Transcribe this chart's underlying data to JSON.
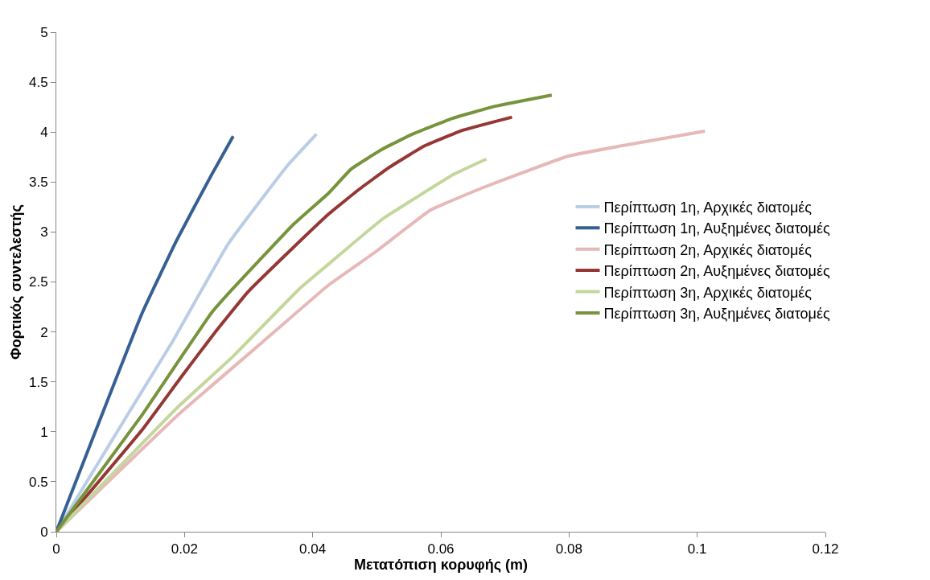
{
  "chart_data": {
    "type": "line",
    "xlabel": "Μετατόπιση κορυφής (m)",
    "ylabel": "Φορτικός συντελεστής",
    "xlim": [
      0,
      0.12
    ],
    "xticks": [
      0,
      0.02,
      0.04,
      0.06,
      0.08,
      0.1,
      0.12
    ],
    "ylim": [
      0,
      5
    ],
    "yticks": [
      0,
      0.5,
      1,
      1.5,
      2,
      2.5,
      3,
      3.5,
      4,
      4.5,
      5
    ],
    "grid": false,
    "legend": "right",
    "marker": "none",
    "line_style": "solid",
    "series": [
      {
        "name": "Περίπτωση 1η, Αρχικές διατομές",
        "color": "#b9cde5",
        "x": [
          0,
          0.0111,
          0.0181,
          0.0268,
          0.036,
          0.0406
        ],
        "values": [
          0,
          1.17,
          1.9,
          2.88,
          3.66,
          3.98
        ]
      },
      {
        "name": "Περίπτωση 1η, Αυξημένες διατομές",
        "color": "#376092",
        "x": [
          0,
          0.0134,
          0.0188,
          0.0242,
          0.0276
        ],
        "values": [
          0,
          2.19,
          2.92,
          3.57,
          3.96
        ]
      },
      {
        "name": "Περίπτωση 2η, Αρχικές διατομές",
        "color": "#e6b9b8",
        "x": [
          0,
          0.019,
          0.0322,
          0.0425,
          0.05,
          0.0584,
          0.0668,
          0.0799,
          0.088,
          0.1012
        ],
        "values": [
          0,
          1.17,
          1.9,
          2.47,
          2.81,
          3.22,
          3.45,
          3.76,
          3.86,
          4.01
        ]
      },
      {
        "name": "Περίπτωση 2η, Αυξημένες διατομές",
        "color": "#953735",
        "x": [
          0,
          0.0134,
          0.0195,
          0.0247,
          0.0299,
          0.0369,
          0.0425,
          0.0471,
          0.0518,
          0.0574,
          0.0635,
          0.0711
        ],
        "values": [
          0,
          1.02,
          1.55,
          1.99,
          2.4,
          2.84,
          3.18,
          3.42,
          3.64,
          3.86,
          4.02,
          4.15
        ]
      },
      {
        "name": "Περίπτωση 3η, Αρχικές διατομές",
        "color": "#c3d69b",
        "x": [
          0,
          0.019,
          0.0275,
          0.0379,
          0.0425,
          0.0509,
          0.0621,
          0.0671
        ],
        "values": [
          0,
          1.25,
          1.75,
          2.43,
          2.68,
          3.13,
          3.58,
          3.73
        ]
      },
      {
        "name": "Περίπτωση 3η, Αυξημένες διατομές",
        "color": "#77933c",
        "x": [
          0,
          0.0134,
          0.0195,
          0.0242,
          0.0275,
          0.0369,
          0.0425,
          0.046,
          0.0509,
          0.0556,
          0.0619,
          0.0686,
          0.0773
        ],
        "values": [
          0,
          1.17,
          1.75,
          2.19,
          2.43,
          3.07,
          3.39,
          3.63,
          3.83,
          3.98,
          4.14,
          4.26,
          4.37
        ]
      }
    ]
  }
}
